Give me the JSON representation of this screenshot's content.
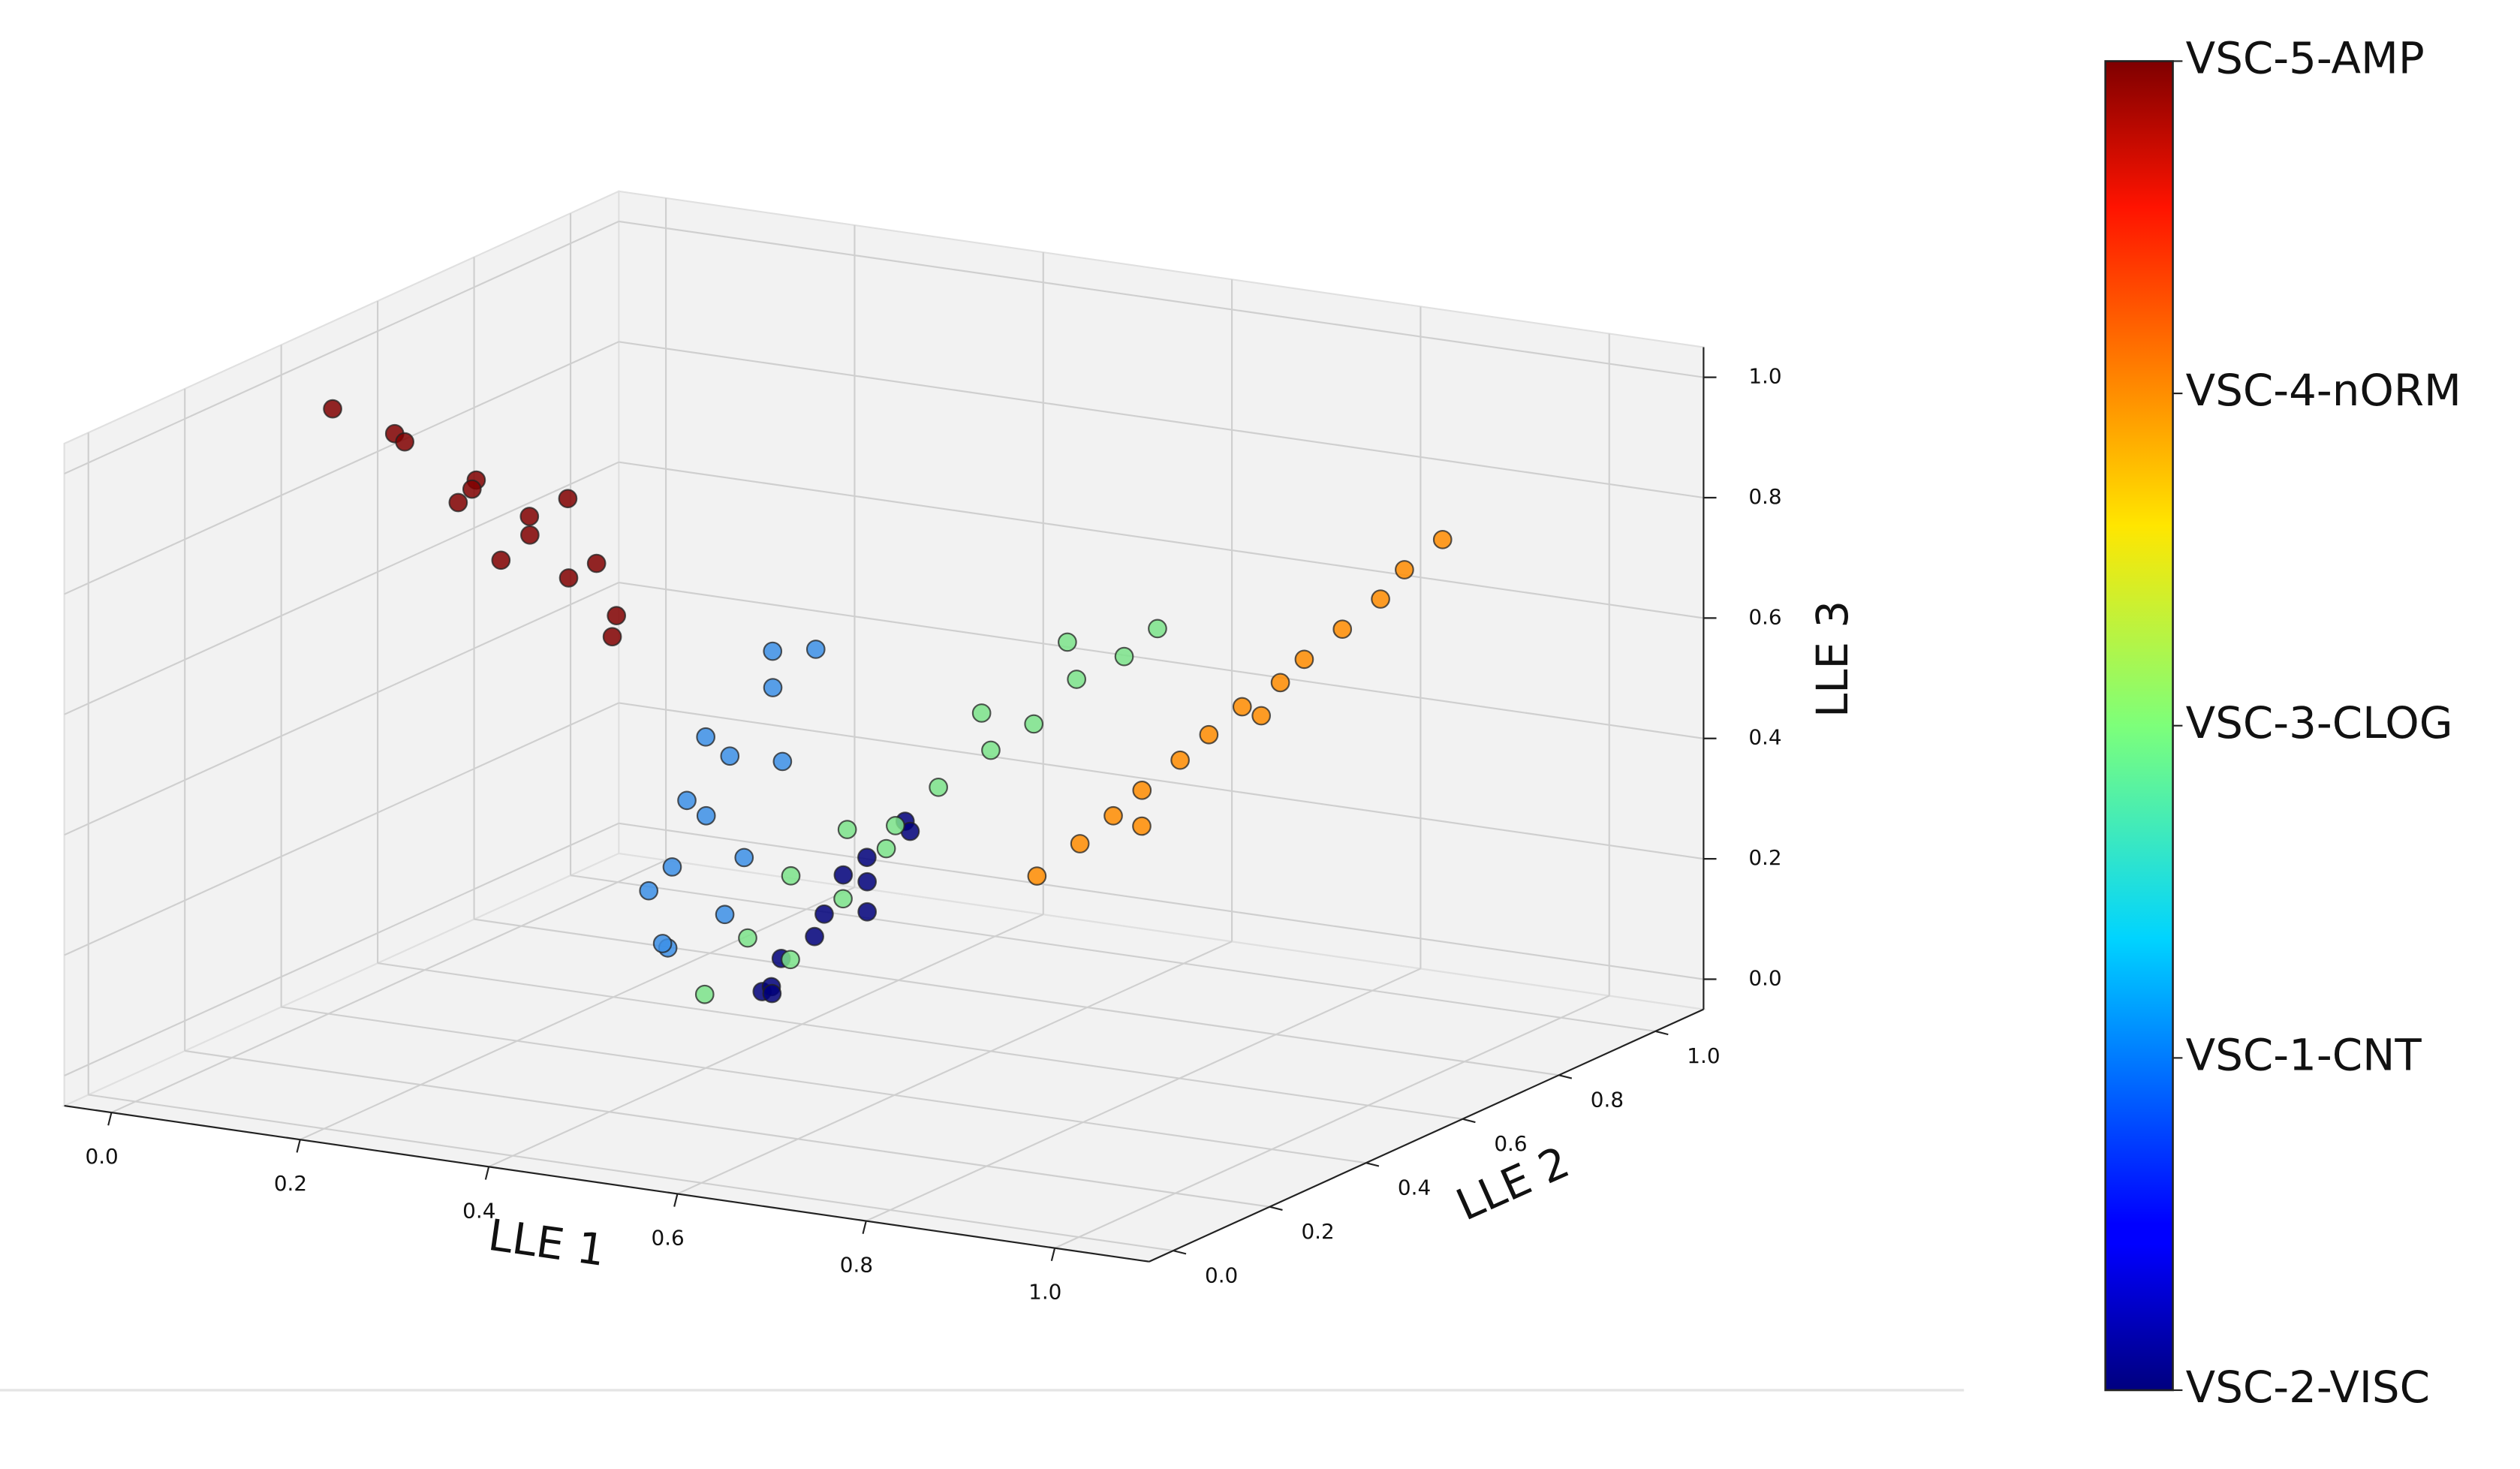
{
  "chart_data": {
    "type": "scatter3d",
    "x_label": "LLE 1",
    "y_label": "LLE 2",
    "z_label": "LLE 3",
    "xlim": [
      -0.05,
      1.1
    ],
    "ylim": [
      -0.05,
      1.1
    ],
    "zlim": [
      -0.05,
      1.05
    ],
    "xticks": [
      {
        "value": 0,
        "label": "0.0"
      },
      0.2,
      0.4,
      0.6,
      0.8,
      {
        "value": 1,
        "label": "1.0"
      }
    ],
    "yticks": [
      {
        "value": 0,
        "label": "0.0"
      },
      0.2,
      0.4,
      0.6,
      0.8,
      {
        "value": 1,
        "label": "1.0"
      }
    ],
    "zticks": [
      {
        "value": 0,
        "label": "0.0"
      },
      0.2,
      0.4,
      0.6,
      0.8,
      {
        "value": 1,
        "label": "1.0"
      }
    ],
    "grid": true,
    "colorbar": {
      "clim": [
        0,
        4
      ],
      "ticks": [
        {
          "value": 4,
          "label": "VSC-5-AMP"
        },
        {
          "value": 3,
          "label": "VSC-4-nORM"
        },
        {
          "value": 2,
          "label": "VSC-3-CLOG"
        },
        {
          "value": 1,
          "label": "VSC-1-CNT"
        },
        {
          "value": 0,
          "label": "VSC-2-VISC"
        }
      ]
    },
    "series": [
      {
        "color": "#800000",
        "class": 4,
        "x": [
          0.03,
          0.06,
          0.04,
          0.08,
          0.05,
          0.02,
          0.07,
          0.05,
          0.09,
          0.04,
          0.06,
          0.03,
          0.05,
          0.08
        ],
        "y": [
          0.35,
          0.42,
          0.48,
          0.55,
          0.6,
          0.63,
          0.68,
          0.72,
          0.78,
          0.82,
          0.88,
          0.93,
          0.66,
          0.74
        ],
        "z": [
          0.98,
          0.92,
          0.88,
          0.8,
          0.76,
          0.72,
          0.69,
          0.64,
          0.58,
          0.53,
          0.45,
          0.39,
          0.62,
          0.7
        ]
      },
      {
        "color": "#ff8c00",
        "class": 3,
        "x": [
          0.7,
          0.72,
          0.74,
          0.75,
          0.77,
          0.78,
          0.8,
          0.82,
          0.83,
          0.85,
          0.87,
          0.88,
          0.9,
          0.76,
          0.81
        ],
        "y": [
          0.5,
          0.55,
          0.58,
          0.62,
          0.66,
          0.7,
          0.73,
          0.77,
          0.8,
          0.84,
          0.88,
          0.91,
          0.95,
          0.6,
          0.75
        ],
        "z": [
          0.3,
          0.34,
          0.38,
          0.41,
          0.45,
          0.48,
          0.52,
          0.55,
          0.58,
          0.62,
          0.66,
          0.7,
          0.74,
          0.36,
          0.5
        ]
      },
      {
        "color": "#3c8fe6",
        "class": 1,
        "x": [
          0.38,
          0.4,
          0.42,
          0.39,
          0.41,
          0.37,
          0.43,
          0.4,
          0.38,
          0.42,
          0.36,
          0.41,
          0.44,
          0.39
        ],
        "y": [
          0.4,
          0.45,
          0.5,
          0.35,
          0.42,
          0.38,
          0.48,
          0.4,
          0.44,
          0.52,
          0.36,
          0.46,
          0.55,
          0.33
        ],
        "z": [
          0.39,
          0.45,
          0.55,
          0.3,
          0.2,
          0.15,
          0.62,
          0.5,
          0.35,
          0.42,
          0.25,
          0.28,
          0.6,
          0.18
        ]
      },
      {
        "color": "#00007a",
        "class": 0,
        "x": [
          0.5,
          0.48,
          0.52,
          0.47,
          0.53,
          0.5,
          0.55,
          0.49,
          0.51,
          0.46,
          0.54,
          0.52
        ],
        "y": [
          0.45,
          0.4,
          0.5,
          0.38,
          0.48,
          0.43,
          0.52,
          0.36,
          0.47,
          0.42,
          0.55,
          0.5
        ],
        "z": [
          0.21,
          0.15,
          0.25,
          0.1,
          0.3,
          0.18,
          0.35,
          0.12,
          0.27,
          0.08,
          0.32,
          0.2
        ]
      },
      {
        "color": "#7be38a",
        "class": 2,
        "x": [
          0.45,
          0.47,
          0.5,
          0.48,
          0.52,
          0.55,
          0.53,
          0.57,
          0.6,
          0.58,
          0.62,
          0.65,
          0.63,
          0.68,
          0.7,
          0.55
        ],
        "y": [
          0.3,
          0.35,
          0.38,
          0.42,
          0.45,
          0.5,
          0.52,
          0.55,
          0.6,
          0.62,
          0.65,
          0.68,
          0.7,
          0.72,
          0.75,
          0.4
        ],
        "z": [
          0.12,
          0.2,
          0.16,
          0.28,
          0.24,
          0.35,
          0.3,
          0.4,
          0.45,
          0.5,
          0.48,
          0.55,
          0.6,
          0.58,
          0.62,
          0.38
        ]
      }
    ]
  }
}
